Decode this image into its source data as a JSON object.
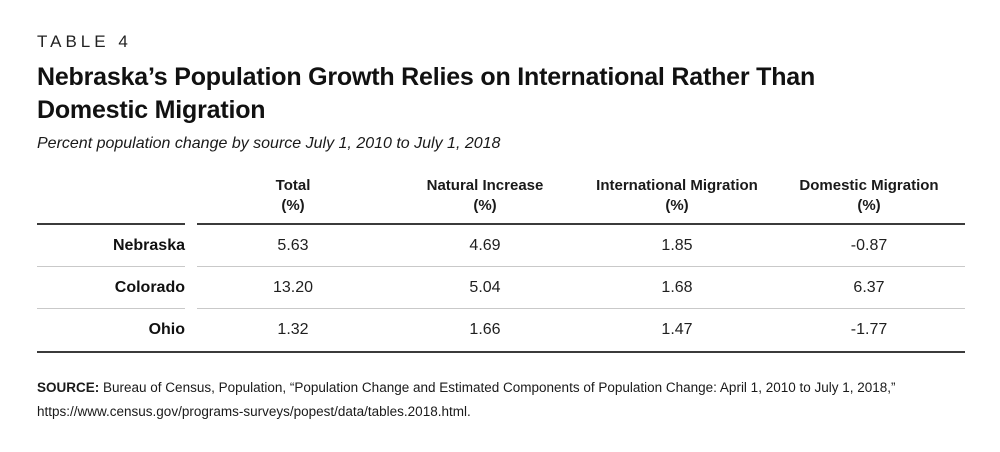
{
  "chart_data": {
    "type": "table",
    "table_tag": "TABLE 4",
    "title_lines": [
      "Nebraska’s Population Growth Relies on International Rather Than",
      "Domestic Migration"
    ],
    "title": "Nebraska’s Population Growth Relies on International Rather Than Domestic Migration",
    "subtitle": "Percent population change by source July 1, 2010 to July 1, 2018",
    "columns": [
      {
        "label": "Total",
        "unit": "(%)"
      },
      {
        "label": "Natural Increase",
        "unit": "(%)"
      },
      {
        "label": "International Migration",
        "unit": "(%)"
      },
      {
        "label": "Domestic Migration",
        "unit": "(%)"
      }
    ],
    "rows": [
      {
        "label": "Nebraska",
        "values": [
          "5.63",
          "4.69",
          "1.85",
          "-0.87"
        ]
      },
      {
        "label": "Colorado",
        "values": [
          "13.20",
          "5.04",
          "1.68",
          "6.37"
        ]
      },
      {
        "label": "Ohio",
        "values": [
          "1.32",
          "1.66",
          "1.47",
          "-1.77"
        ]
      }
    ],
    "source_label": "SOURCE:",
    "source_text": " Bureau of Census, Population, “Population Change and Estimated Components of Population Change: April 1, 2010 to July 1, 2018,” https://www.census.gov/programs-surveys/popest/data/tables.2018.html."
  },
  "colors": {
    "text": "#1a1a1a",
    "rule_dark": "#3b3b3b",
    "rule_light": "#c9c9c9",
    "background": "#ffffff"
  }
}
